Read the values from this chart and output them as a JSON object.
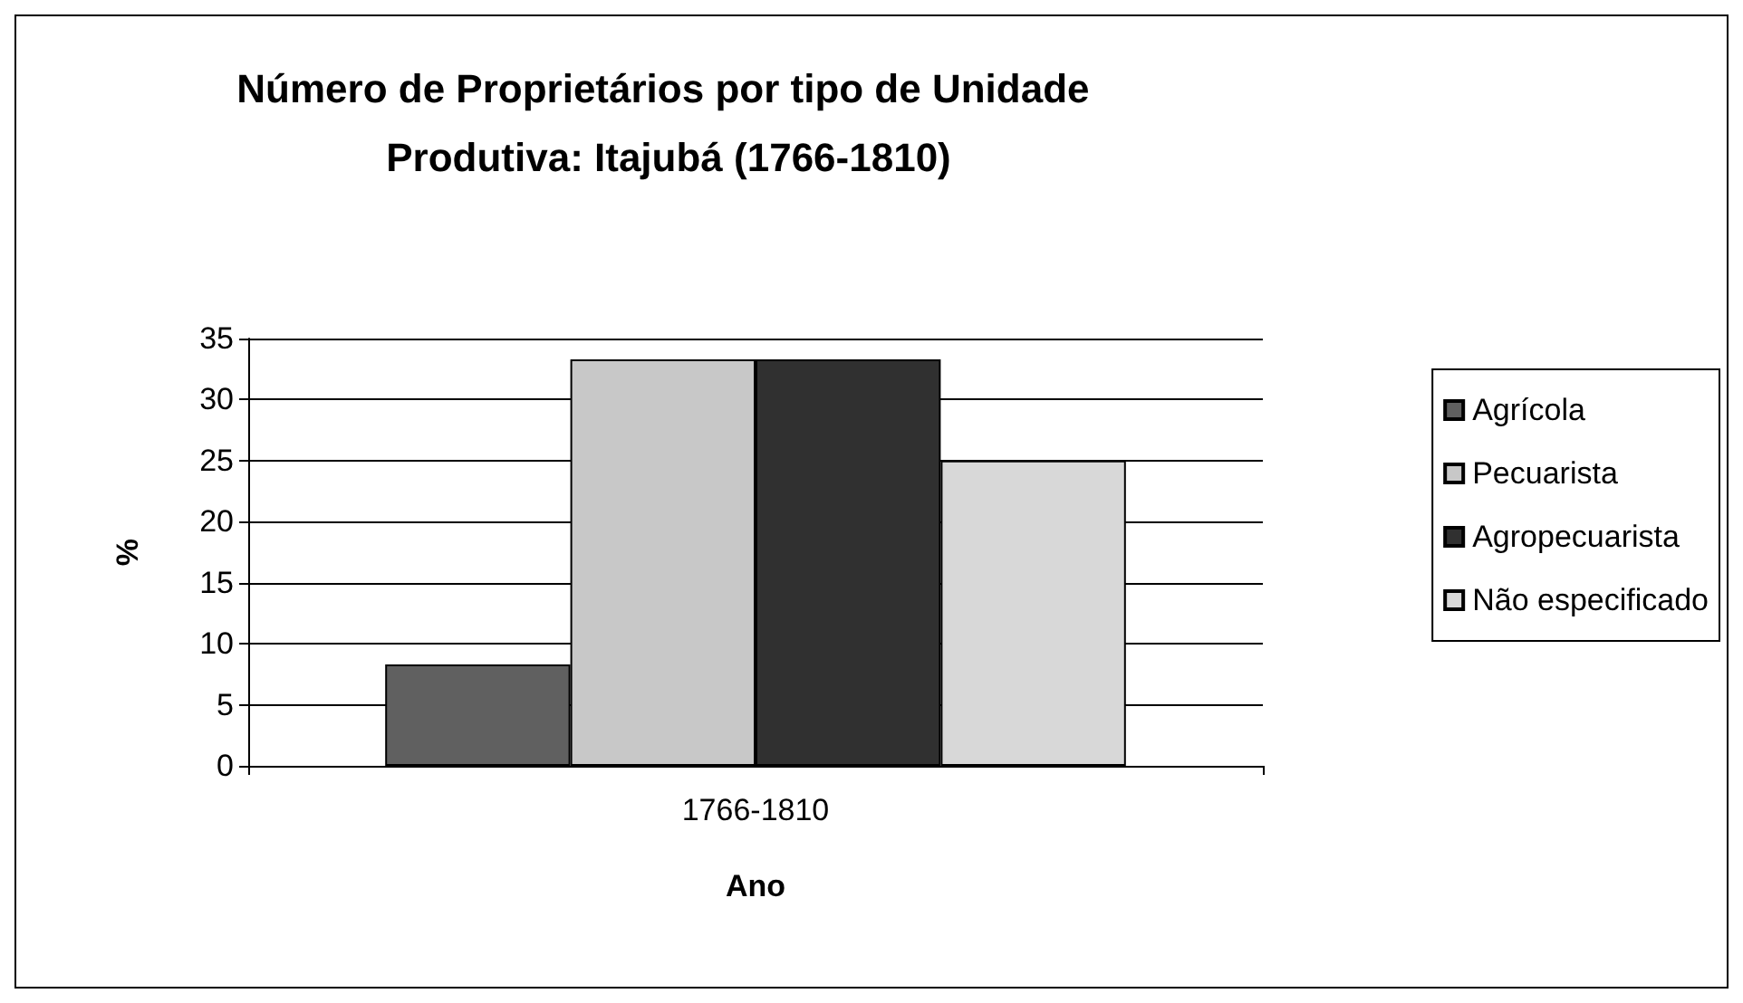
{
  "chart_data": {
    "type": "bar",
    "title": "Número de Proprietários por tipo de Unidade Produtiva: Itajubá (1766-1810)",
    "xlabel": "Ano",
    "ylabel": "%",
    "categories": [
      "1766-1810"
    ],
    "series": [
      {
        "name": "Agrícola",
        "color": "#606060",
        "values": [
          8.3
        ]
      },
      {
        "name": "Pecuarista",
        "color": "#c8c8c8",
        "values": [
          33.3
        ]
      },
      {
        "name": "Agropecuarista",
        "color": "#303030",
        "values": [
          33.3
        ]
      },
      {
        "name": "Não especificado",
        "color": "#d8d8d8",
        "values": [
          25
        ]
      }
    ],
    "ylim": [
      0,
      35
    ],
    "yticks": [
      0,
      5,
      10,
      15,
      20,
      25,
      30,
      35
    ],
    "grid": "y",
    "legend": "right"
  }
}
